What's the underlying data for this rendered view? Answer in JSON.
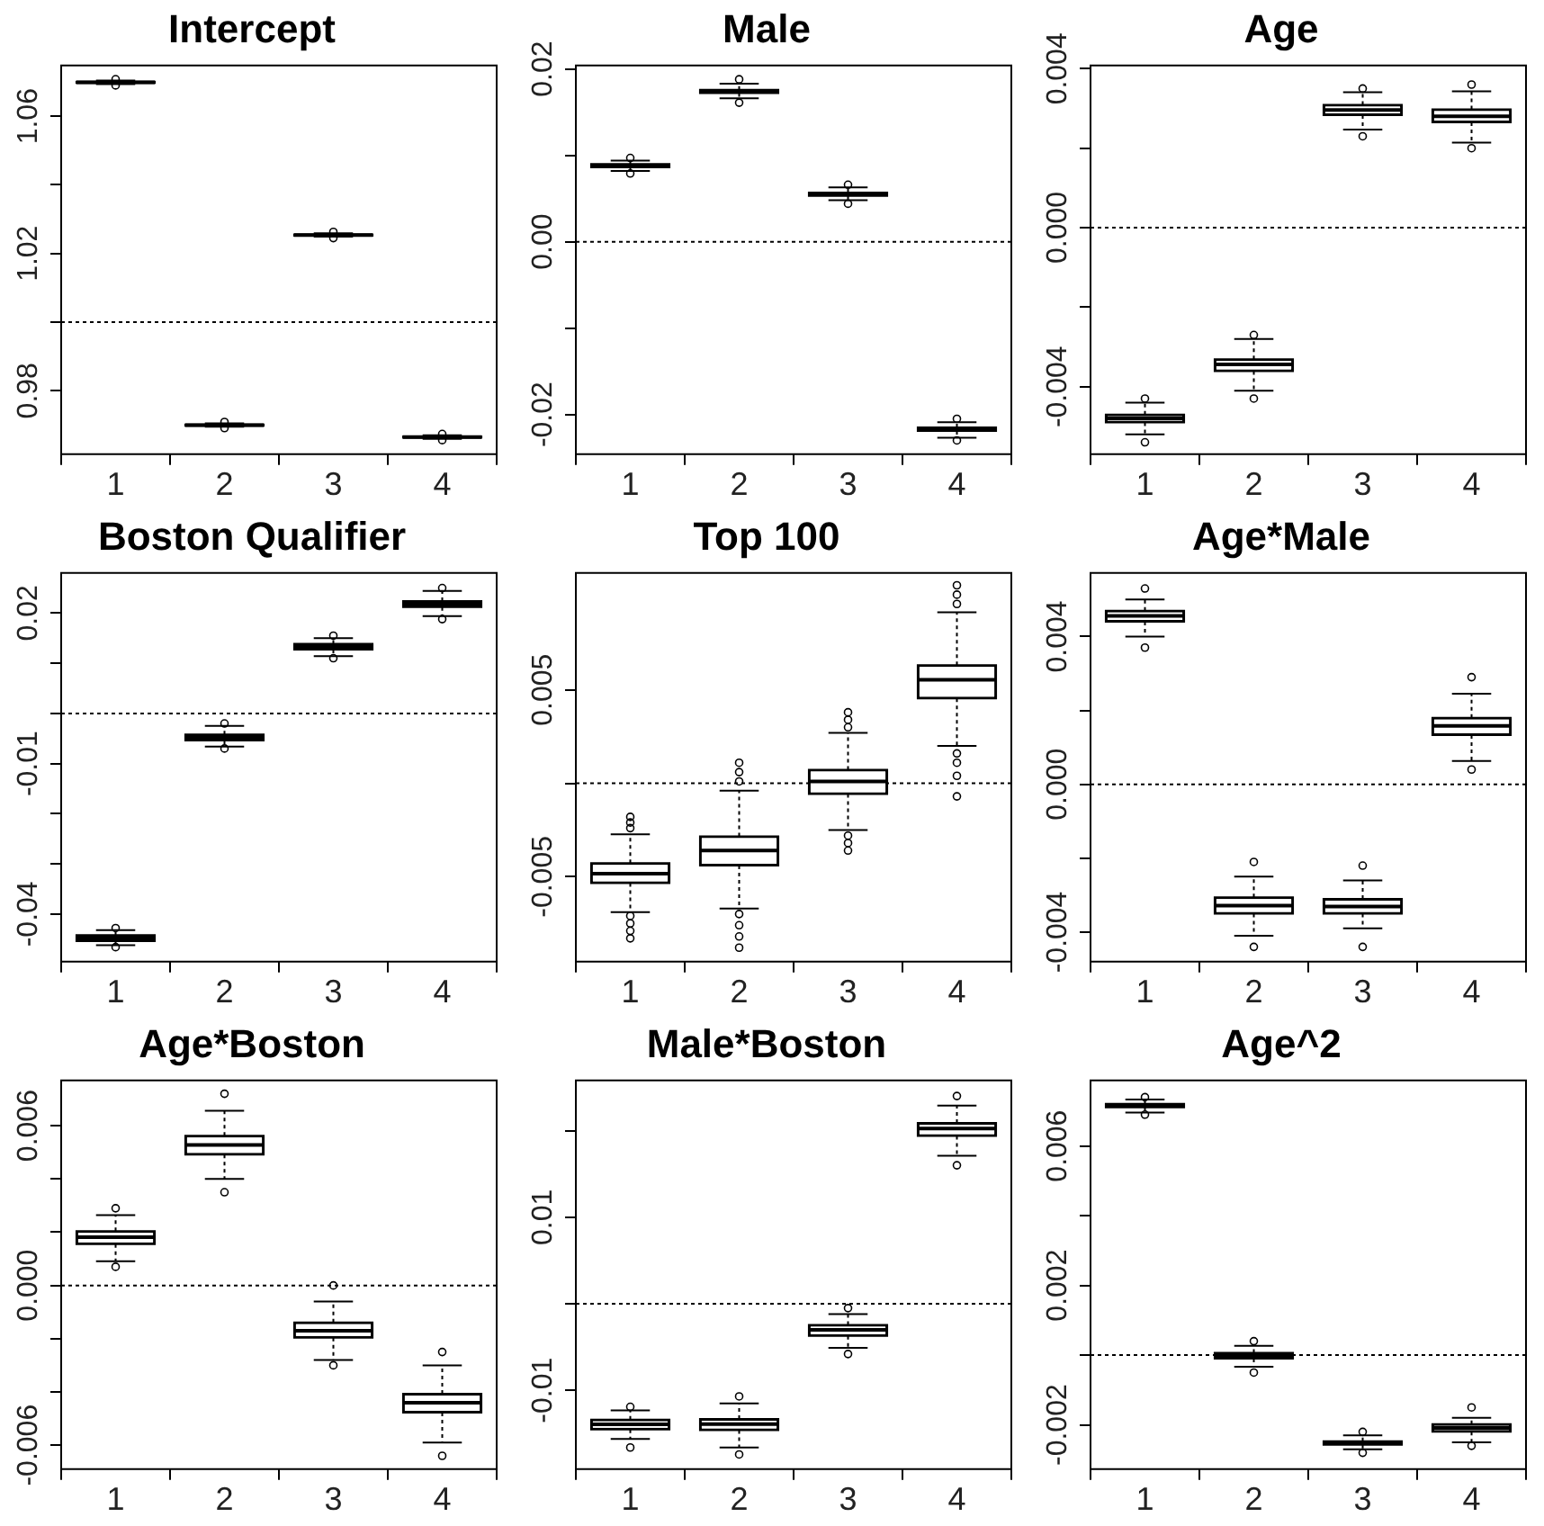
{
  "chart_data": [
    {
      "type": "box",
      "title": "Intercept",
      "categories": [
        "1",
        "2",
        "3",
        "4"
      ],
      "ylim": [
        0.9615,
        1.0748
      ],
      "yticks": [
        0.98,
        {
          "value": 1.0,
          "label": null
        },
        1.02,
        {
          "value": 1.04,
          "label": null
        },
        1.06
      ],
      "ref_lines": [
        {
          "axis": "y",
          "value": 1.0,
          "line_style": "dotted"
        }
      ],
      "boxes": [
        {
          "low": 1.0694,
          "q1": 1.0697,
          "median": 1.0699,
          "q3": 1.0701,
          "high": 1.0704,
          "outliers": [
            1.0708,
            1.069
          ]
        },
        {
          "low": 0.9695,
          "q1": 0.9698,
          "median": 0.97,
          "q3": 0.9702,
          "high": 0.9705,
          "outliers": [
            0.9709,
            0.9691
          ]
        },
        {
          "low": 1.0249,
          "q1": 1.0252,
          "median": 1.0254,
          "q3": 1.0256,
          "high": 1.0259,
          "outliers": [
            1.0263,
            1.0245
          ]
        },
        {
          "low": 0.966,
          "q1": 0.9663,
          "median": 0.9665,
          "q3": 0.9667,
          "high": 0.967,
          "outliers": [
            0.9674,
            0.9656
          ]
        }
      ]
    },
    {
      "type": "box",
      "title": "Male",
      "categories": [
        "1",
        "2",
        "3",
        "4"
      ],
      "ylim": [
        -0.0246,
        0.0204
      ],
      "yticks": [
        -0.02,
        {
          "value": -0.01,
          "label": null
        },
        {
          "value": 0,
          "label": "0.00"
        },
        {
          "value": 0.01,
          "label": null
        },
        0.02
      ],
      "ref_lines": [
        {
          "axis": "y",
          "value": 0,
          "line_style": "dotted"
        }
      ],
      "boxes": [
        {
          "low": 0.0082,
          "q1": 0.0086,
          "median": 0.0088,
          "q3": 0.009,
          "high": 0.0094,
          "outliers": [
            0.0097,
            0.0079
          ]
        },
        {
          "low": 0.0166,
          "q1": 0.0172,
          "median": 0.0174,
          "q3": 0.0176,
          "high": 0.0183,
          "outliers": [
            0.0188,
            0.0161
          ]
        },
        {
          "low": 0.0048,
          "q1": 0.0053,
          "median": 0.0055,
          "q3": 0.0057,
          "high": 0.0063,
          "outliers": [
            0.0066,
            0.0044
          ]
        },
        {
          "low": -0.0227,
          "q1": -0.0219,
          "median": -0.0217,
          "q3": -0.0215,
          "high": -0.0209,
          "outliers": [
            -0.0205,
            -0.023
          ]
        }
      ]
    },
    {
      "type": "box",
      "title": "Age",
      "categories": [
        "1",
        "2",
        "3",
        "4"
      ],
      "ylim": [
        -0.0057,
        0.00408
      ],
      "yticks": [
        -0.004,
        {
          "value": -0.002,
          "label": null
        },
        {
          "value": 0,
          "label": "0.000"
        },
        {
          "value": 0.002,
          "label": null
        },
        0.004
      ],
      "ref_lines": [
        {
          "axis": "y",
          "value": 0,
          "line_style": "dotted"
        }
      ],
      "boxes": [
        {
          "low": -0.0052,
          "q1": -0.0049,
          "median": -0.0048,
          "q3": -0.0047,
          "high": -0.0044,
          "outliers": [
            -0.0043,
            -0.0054
          ]
        },
        {
          "low": -0.0041,
          "q1": -0.00361,
          "median": -0.00344,
          "q3": -0.00331,
          "high": -0.0028,
          "outliers": [
            -0.0027,
            -0.0043
          ]
        },
        {
          "low": 0.00247,
          "q1": 0.00283,
          "median": 0.00296,
          "q3": 0.00309,
          "high": 0.00341,
          "outliers": [
            0.0035,
            0.0023
          ]
        },
        {
          "low": 0.00214,
          "q1": 0.00265,
          "median": 0.0028,
          "q3": 0.00298,
          "high": 0.00343,
          "outliers": [
            0.0036,
            0.002
          ]
        }
      ]
    },
    {
      "type": "box",
      "title": "Boston Qualifier",
      "categories": [
        "1",
        "2",
        "3",
        "4"
      ],
      "ylim": [
        -0.0495,
        0.028
      ],
      "yticks": [
        -0.04,
        {
          "value": -0.03,
          "label": null
        },
        {
          "value": -0.02,
          "label": null
        },
        -0.01,
        {
          "value": 0,
          "label": null
        },
        {
          "value": 0.01,
          "label": null
        },
        0.02
      ],
      "ref_lines": [
        {
          "axis": "y",
          "value": 0,
          "line_style": "dotted"
        }
      ],
      "boxes": [
        {
          "low": -0.0462,
          "q1": -0.0454,
          "median": -0.0448,
          "q3": -0.0442,
          "high": -0.0432,
          "outliers": [
            -0.0428,
            -0.0466
          ]
        },
        {
          "low": -0.0066,
          "q1": -0.0054,
          "median": -0.0048,
          "q3": -0.0042,
          "high": -0.0025,
          "outliers": [
            -0.002,
            -0.007
          ]
        },
        {
          "low": 0.0114,
          "q1": 0.0127,
          "median": 0.0133,
          "q3": 0.0139,
          "high": 0.015,
          "outliers": [
            0.0155,
            0.011
          ]
        },
        {
          "low": 0.0194,
          "q1": 0.0212,
          "median": 0.0218,
          "q3": 0.0224,
          "high": 0.0244,
          "outliers": [
            0.025,
            0.0188
          ]
        }
      ]
    },
    {
      "type": "box",
      "title": "Top 100",
      "categories": [
        "1",
        "2",
        "3",
        "4"
      ],
      "ylim": [
        -0.00955,
        0.01126
      ],
      "yticks": [
        -0.005,
        {
          "value": 0,
          "label": null
        },
        0.005
      ],
      "ref_lines": [
        {
          "axis": "y",
          "value": 0,
          "line_style": "dotted"
        }
      ],
      "boxes": [
        {
          "low": -0.0069,
          "q1": -0.00535,
          "median": -0.00484,
          "q3": -0.00427,
          "high": -0.00273,
          "outliers": [
            -0.0018,
            -0.0021,
            -0.0024,
            -0.0071,
            -0.0075,
            -0.0079,
            -0.0083
          ]
        },
        {
          "low": -0.0067,
          "q1": -0.00441,
          "median": -0.0036,
          "q3": -0.00284,
          "high": -0.0004,
          "outliers": [
            0.0011,
            0.0006,
            0.0001,
            -0.007,
            -0.0076,
            -0.0082,
            -0.0088
          ]
        },
        {
          "low": -0.0025,
          "q1": -0.00057,
          "median": 0.0001,
          "q3": 0.00073,
          "high": 0.0027,
          "outliers": [
            0.0038,
            0.0034,
            0.003,
            -0.0028,
            -0.0032,
            -0.0036
          ]
        },
        {
          "low": 0.002,
          "q1": 0.00454,
          "median": 0.00554,
          "q3": 0.00632,
          "high": 0.00915,
          "outliers": [
            0.0106,
            0.0101,
            0.0096,
            0.0016,
            0.0011,
            0.0004,
            -0.0007
          ]
        }
      ]
    },
    {
      "type": "box",
      "title": "Age*Male",
      "categories": [
        "1",
        "2",
        "3",
        "4"
      ],
      "ylim": [
        -0.0048,
        0.00572
      ],
      "yticks": [
        -0.004,
        {
          "value": -0.002,
          "label": null
        },
        {
          "value": 0,
          "label": "0.000"
        },
        {
          "value": 0.002,
          "label": null
        },
        0.004
      ],
      "ref_lines": [
        {
          "axis": "y",
          "value": 0,
          "line_style": "dotted"
        }
      ],
      "boxes": [
        {
          "low": 0.004,
          "q1": 0.0044,
          "median": 0.00456,
          "q3": 0.0047,
          "high": 0.005,
          "outliers": [
            0.0053,
            0.0037
          ]
        },
        {
          "low": -0.0041,
          "q1": -0.0035,
          "median": -0.00328,
          "q3": -0.00306,
          "high": -0.0025,
          "outliers": [
            -0.0021,
            -0.0044
          ]
        },
        {
          "low": -0.0039,
          "q1": -0.0035,
          "median": -0.00331,
          "q3": -0.0031,
          "high": -0.0026,
          "outliers": [
            -0.0022,
            -0.0044
          ]
        },
        {
          "low": 0.00063,
          "q1": 0.00133,
          "median": 0.00158,
          "q3": 0.0018,
          "high": 0.00245,
          "outliers": [
            0.0029,
            0.0004
          ]
        }
      ]
    },
    {
      "type": "box",
      "title": "Age*Boston",
      "categories": [
        "1",
        "2",
        "3",
        "4"
      ],
      "ylim": [
        -0.0069,
        0.0077
      ],
      "yticks": [
        -0.006,
        {
          "value": -0.004,
          "label": null
        },
        {
          "value": -0.002,
          "label": null
        },
        {
          "value": 0,
          "label": "0.000"
        },
        {
          "value": 0.002,
          "label": null
        },
        {
          "value": 0.004,
          "label": null
        },
        0.006
      ],
      "ref_lines": [
        {
          "axis": "y",
          "value": 0,
          "line_style": "dotted"
        }
      ],
      "boxes": [
        {
          "low": 0.00091,
          "q1": 0.00155,
          "median": 0.00181,
          "q3": 0.00204,
          "high": 0.00264,
          "outliers": [
            0.0029,
            0.0007
          ]
        },
        {
          "low": 0.004,
          "q1": 0.00491,
          "median": 0.00528,
          "q3": 0.00562,
          "high": 0.00656,
          "outliers": [
            0.0072,
            0.0035
          ]
        },
        {
          "low": -0.0028,
          "q1": -0.00196,
          "median": -0.0017,
          "q3": -0.00139,
          "high": -0.0006,
          "outliers": [
            0.0,
            -0.003
          ]
        },
        {
          "low": -0.0059,
          "q1": -0.00478,
          "median": -0.00441,
          "q3": -0.00407,
          "high": -0.003,
          "outliers": [
            -0.0025,
            -0.0064
          ]
        }
      ]
    },
    {
      "type": "box",
      "title": "Male*Boston",
      "categories": [
        "1",
        "2",
        "3",
        "4"
      ],
      "ylim": [
        -0.0191,
        0.0258
      ],
      "yticks": [
        -0.01,
        {
          "value": 0,
          "label": null
        },
        0.01,
        {
          "value": 0.02,
          "label": null
        }
      ],
      "ref_lines": [
        {
          "axis": "y",
          "value": 0,
          "line_style": "dotted"
        }
      ],
      "boxes": [
        {
          "low": -0.0156,
          "q1": -0.01452,
          "median": -0.01393,
          "q3": -0.01337,
          "high": -0.0123,
          "outliers": [
            -0.0119,
            -0.0166
          ]
        },
        {
          "low": -0.0166,
          "q1": -0.0146,
          "median": -0.0139,
          "q3": -0.0133,
          "high": -0.0115,
          "outliers": [
            -0.0107,
            -0.0174
          ]
        },
        {
          "low": -0.0051,
          "q1": -0.00372,
          "median": -0.003,
          "q3": -0.00243,
          "high": -0.0012,
          "outliers": [
            -0.0005,
            -0.0058
          ]
        },
        {
          "low": 0.0171,
          "q1": 0.0194,
          "median": 0.02024,
          "q3": 0.0209,
          "high": 0.0229,
          "outliers": [
            0.024,
            0.016
          ]
        }
      ]
    },
    {
      "type": "box",
      "title": "Age^2",
      "categories": [
        "1",
        "2",
        "3",
        "4"
      ],
      "ylim": [
        -0.00327,
        0.00788
      ],
      "yticks": [
        -0.002,
        {
          "value": 0,
          "label": null
        },
        0.002,
        {
          "value": 0.004,
          "label": null
        },
        0.006
      ],
      "ref_lines": [
        {
          "axis": "y",
          "value": 0,
          "line_style": "dotted"
        }
      ],
      "boxes": [
        {
          "low": 0.00696,
          "q1": 0.00711,
          "median": 0.00716,
          "q3": 0.00721,
          "high": 0.00733,
          "outliers": [
            0.0074,
            0.0069
          ]
        },
        {
          "low": -0.00033,
          "q1": -0.0001,
          "median": 0.0,
          "q3": 7e-05,
          "high": 0.00027,
          "outliers": [
            0.0004,
            -0.0005
          ]
        },
        {
          "low": -0.0027,
          "q1": -0.00257,
          "median": -0.00252,
          "q3": -0.00247,
          "high": -0.0023,
          "outliers": [
            -0.0022,
            -0.0028
          ]
        },
        {
          "low": -0.0025,
          "q1": -0.0022,
          "median": -0.00209,
          "q3": -0.00198,
          "high": -0.0018,
          "outliers": [
            -0.0015,
            -0.0026
          ]
        }
      ]
    }
  ]
}
